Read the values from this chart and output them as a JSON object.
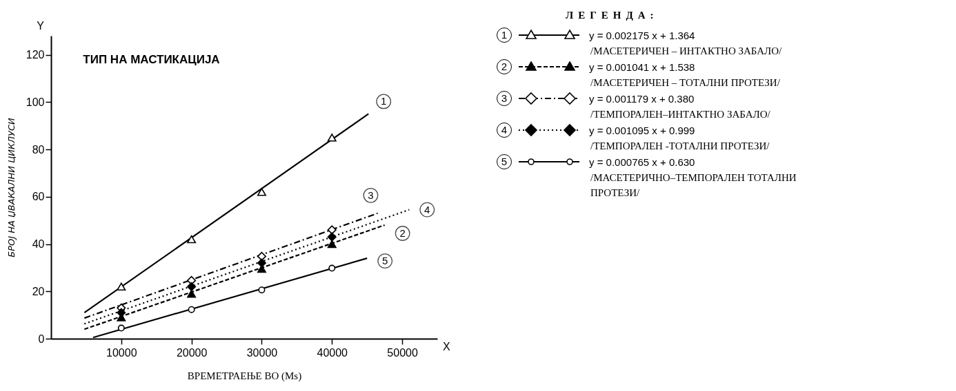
{
  "chart_data": {
    "type": "line",
    "title": "ТИП НА МАСТИКАЦИЈА",
    "xlabel": "ВРЕМЕТРАЕЊЕ ВО  (Ms)",
    "ylabel": "БРОЈ НА  ЏВАКАЛНИ ЦИКЛУСИ",
    "legend_title": "ЛЕГЕНДА:",
    "legend": "right",
    "xlim": [
      0,
      55000
    ],
    "xticks": [
      10000,
      20000,
      30000,
      40000,
      50000
    ],
    "ylim": [
      0,
      128
    ],
    "yticks": [
      0,
      20,
      40,
      60,
      80,
      100,
      120
    ],
    "annotations": [
      "Y",
      "X",
      "y = 0.002175 x + 1.364",
      "/МАСЕТЕРИЧЕН – ИНТАКТНО ЗАБАЛО/",
      "y = 0.001041 x + 1.538",
      "/МАСЕТЕРИЧЕН – ТОТАЛНИ ПРОТЕЗИ/",
      "y = 0.001179 x + 0.380",
      "/ТЕМПОРАЛЕН–ИНТАКТНО ЗАБАЛО/",
      "y = 0.001095 x + 0.999",
      "/ТЕМПОРАЛЕН -ТОТАЛНИ ПРОТЕЗИ/",
      "y = 0.000765 x + 0.630",
      "/МАСЕТЕРИЧНО–ТЕМПОРАЛЕН ТОТАЛНИ ПРОТЕЗИ/"
    ],
    "series": [
      {
        "name": "1",
        "type": "line",
        "color": "#000000",
        "line_style": "solid",
        "x": [
          4750,
          45200
        ],
        "values": [
          11,
          95
        ]
      },
      {
        "name": "2",
        "type": "line",
        "color": "#000000",
        "line_style": "dashed",
        "x": [
          4750,
          47500
        ],
        "values": [
          4,
          48
        ]
      },
      {
        "name": "3",
        "type": "line",
        "color": "#000000",
        "line_style": "dashdot",
        "x": [
          4750,
          46500
        ],
        "values": [
          8.7,
          53
        ]
      },
      {
        "name": "4",
        "type": "line",
        "color": "#000000",
        "line_style": "dotted",
        "x": [
          4750,
          51000
        ],
        "values": [
          6.3,
          54.5
        ]
      },
      {
        "name": "5",
        "type": "line",
        "color": "#000000",
        "line_style": "solid",
        "x": [
          6000,
          45000
        ],
        "values": [
          0.5,
          34
        ]
      },
      {
        "type": "scatter",
        "color": "#ffffff",
        "marker": "triangle",
        "x": [
          10000,
          20000,
          30000,
          40000
        ],
        "values": [
          22,
          42,
          62,
          85
        ]
      },
      {
        "type": "scatter",
        "color": "#000000",
        "marker": "triangle",
        "x": [
          10000,
          20000,
          30000,
          40000
        ],
        "values": [
          9,
          19,
          29.5,
          40
        ]
      },
      {
        "type": "scatter",
        "color": "#ffffff",
        "marker": "diamond",
        "x": [
          10000,
          20000,
          30000,
          40000
        ],
        "values": [
          13,
          24.6,
          34.8,
          46
        ]
      },
      {
        "type": "scatter",
        "color": "#000000",
        "marker": "diamond",
        "x": [
          10000,
          20000,
          30000,
          40000
        ],
        "values": [
          11,
          22,
          32,
          43
        ]
      },
      {
        "type": "scatter",
        "color": "#ffffff",
        "marker": "circle",
        "x": [
          10000,
          20000,
          30000,
          40000
        ],
        "values": [
          4.5,
          12.3,
          20.6,
          29.8
        ]
      }
    ]
  }
}
